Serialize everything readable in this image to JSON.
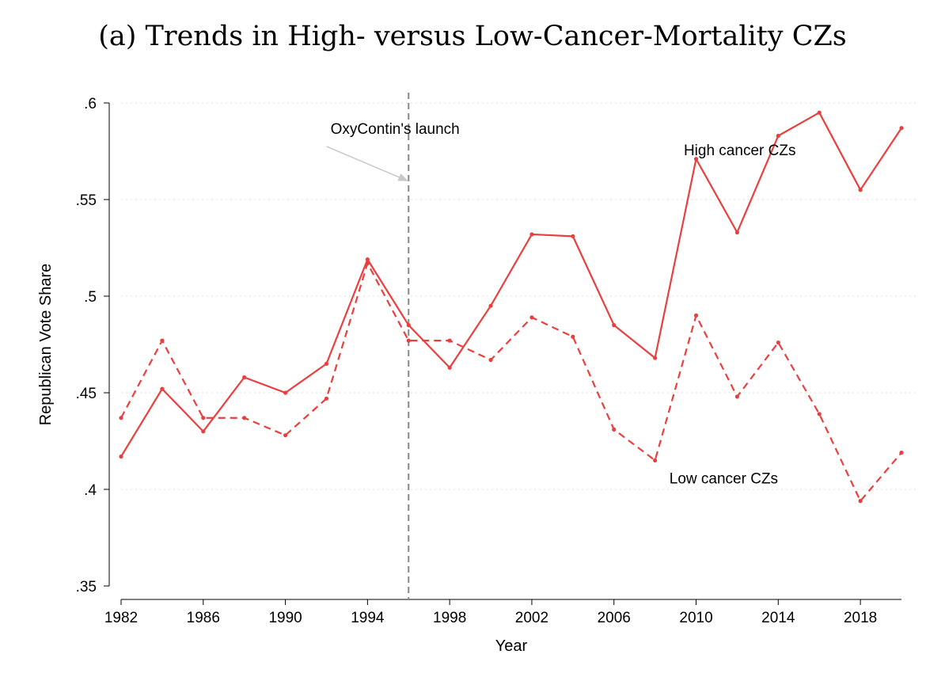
{
  "chart_data": {
    "type": "line",
    "title": "(a) Trends in High- versus Low-Cancer-Mortality CZs",
    "xlabel": "Year",
    "ylabel": "Republican Vote Share",
    "xlim": [
      1982,
      2020
    ],
    "ylim": [
      0.35,
      0.6
    ],
    "x_ticks": [
      1982,
      1986,
      1990,
      1994,
      1998,
      2002,
      2006,
      2010,
      2014,
      2018
    ],
    "x_tick_labels": [
      "1982",
      "1986",
      "1990",
      "1994",
      "1998",
      "2002",
      "2006",
      "2010",
      "2014",
      "2018"
    ],
    "y_ticks": [
      0.35,
      0.4,
      0.45,
      0.5,
      0.55,
      0.6
    ],
    "y_tick_labels": [
      ".35",
      ".4",
      ".45",
      ".5",
      ".55",
      ".6"
    ],
    "grid": "horizontal-dotted",
    "x": [
      1982,
      1984,
      1986,
      1988,
      1990,
      1992,
      1994,
      1996,
      1998,
      2000,
      2002,
      2004,
      2006,
      2008,
      2010,
      2012,
      2014,
      2016,
      2018,
      2020
    ],
    "series": [
      {
        "label": "High cancer CZs",
        "style": "solid",
        "color": "#e8403f",
        "values": [
          0.417,
          0.452,
          0.43,
          0.458,
          0.45,
          0.465,
          0.519,
          0.485,
          0.463,
          0.495,
          0.532,
          0.531,
          0.485,
          0.468,
          0.571,
          0.533,
          0.583,
          0.595,
          0.555,
          0.587
        ]
      },
      {
        "label": "Low cancer  CZs",
        "style": "dashed",
        "color": "#e8403f",
        "values": [
          0.437,
          0.477,
          0.437,
          0.437,
          0.428,
          0.447,
          0.517,
          0.477,
          0.477,
          0.467,
          0.489,
          0.479,
          0.431,
          0.415,
          0.49,
          0.448,
          0.476,
          0.439,
          0.394,
          0.419
        ]
      }
    ],
    "vline": {
      "x": 1996,
      "color": "#888888"
    },
    "annotations": {
      "launch": {
        "text": "OxyContin's launch",
        "x": 1992.2,
        "y": 0.584,
        "arrow_from": [
          1992.0,
          0.5775
        ],
        "arrow_to": [
          1996.0,
          0.5595
        ]
      },
      "high_label": {
        "text": "High cancer CZs",
        "x": 2009.4,
        "y": 0.573
      },
      "low_label": {
        "text": "Low cancer  CZs",
        "x": 2008.7,
        "y": 0.403
      }
    }
  }
}
